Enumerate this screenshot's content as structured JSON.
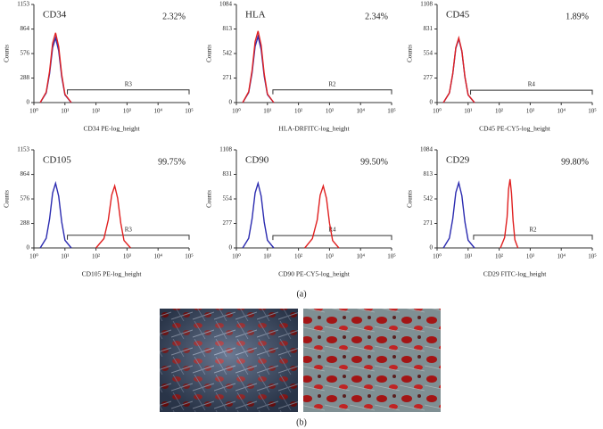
{
  "chart_data": [
    {
      "type": "line",
      "title": "CD34",
      "annotation": "2.32%",
      "xlabel": "CD34 PE-log_height",
      "ylabel": "Counts",
      "xscale": "log",
      "xlim": [
        1,
        100000
      ],
      "xticks": [
        {
          "value": 1,
          "label": "10⁰"
        },
        {
          "value": 10,
          "label": "10¹"
        },
        {
          "value": 100,
          "label": "10²"
        },
        {
          "value": 1000,
          "label": "10³"
        },
        {
          "value": 10000,
          "label": "10⁴"
        },
        {
          "value": 100000,
          "label": "10⁵"
        }
      ],
      "ylim": [
        0,
        1153
      ],
      "yticks": [
        0,
        288,
        576,
        864,
        1153
      ],
      "gate": {
        "label": "R3",
        "x": [
          12,
          100000
        ],
        "y": 150
      },
      "series": [
        {
          "color": "#2b2bb0",
          "x": [
            1.6,
            2.5,
            3.2,
            4,
            5,
            6.3,
            7.9,
            10,
            16
          ],
          "values": [
            0,
            114,
            342,
            646,
            760,
            608,
            304,
            91,
            0
          ]
        },
        {
          "color": "#e02020",
          "x": [
            1.6,
            2.5,
            3.2,
            4,
            5,
            6.3,
            7.9,
            10,
            16
          ],
          "values": [
            0,
            123,
            369,
            697,
            820,
            656,
            328,
            98,
            0
          ]
        }
      ]
    },
    {
      "type": "line",
      "title": "HLA",
      "annotation": "2.34%",
      "xlabel": "HLA-DRFITC-log_height",
      "ylabel": "Counts",
      "xscale": "log",
      "xlim": [
        1,
        100000
      ],
      "xticks": [
        {
          "value": 1,
          "label": "10⁰"
        },
        {
          "value": 10,
          "label": "10¹"
        },
        {
          "value": 100,
          "label": "10²"
        },
        {
          "value": 1000,
          "label": "10³"
        },
        {
          "value": 10000,
          "label": "10⁴"
        },
        {
          "value": 100000,
          "label": "10⁵"
        }
      ],
      "ylim": [
        0,
        1084
      ],
      "yticks": [
        0,
        271,
        542,
        813,
        1084
      ],
      "gate": {
        "label": "R2",
        "x": [
          15,
          100000
        ],
        "y": 140
      },
      "series": [
        {
          "color": "#2b2bb0",
          "x": [
            1.6,
            2.5,
            3.2,
            4,
            5,
            6.3,
            7.9,
            10,
            16
          ],
          "values": [
            0,
            110,
            329,
            621,
            730,
            584,
            292,
            88,
            0
          ]
        },
        {
          "color": "#e02020",
          "x": [
            1.6,
            2.5,
            3.2,
            4,
            5,
            6.3,
            7.9,
            10,
            16
          ],
          "values": [
            0,
            119,
            356,
            672,
            790,
            632,
            316,
            95,
            0
          ]
        }
      ]
    },
    {
      "type": "line",
      "title": "CD45",
      "annotation": "1.89%",
      "xlabel": "CD45 PE-CY5-log_height",
      "ylabel": "Counts",
      "xscale": "log",
      "xlim": [
        1,
        100000
      ],
      "xticks": [
        {
          "value": 1,
          "label": "10⁰"
        },
        {
          "value": 10,
          "label": "10¹"
        },
        {
          "value": 100,
          "label": "10²"
        },
        {
          "value": 1000,
          "label": "10³"
        },
        {
          "value": 10000,
          "label": "10⁴"
        },
        {
          "value": 100000,
          "label": "10⁵"
        }
      ],
      "ylim": [
        0,
        1108
      ],
      "yticks": [
        0,
        277,
        554,
        831,
        1108
      ],
      "gate": {
        "label": "R4",
        "x": [
          12,
          100000
        ],
        "y": 140
      },
      "series": [
        {
          "color": "#2b2bb0",
          "x": [
            1.6,
            2.5,
            3.2,
            4,
            5,
            6.3,
            7.9,
            10,
            16
          ],
          "values": [
            0,
            108,
            324,
            612,
            720,
            576,
            288,
            86,
            0
          ]
        },
        {
          "color": "#e02020",
          "x": [
            1.6,
            2.5,
            3.2,
            4,
            5,
            6.3,
            7.9,
            10,
            16
          ],
          "values": [
            0,
            110,
            329,
            621,
            730,
            584,
            292,
            88,
            0
          ]
        }
      ]
    },
    {
      "type": "line",
      "title": "CD105",
      "annotation": "99.75%",
      "xlabel": "CD105 PE-log_height",
      "ylabel": "Counts",
      "xscale": "log",
      "xlim": [
        1,
        100000
      ],
      "xticks": [
        {
          "value": 1,
          "label": "10⁰"
        },
        {
          "value": 10,
          "label": "10¹"
        },
        {
          "value": 100,
          "label": "10²"
        },
        {
          "value": 1000,
          "label": "10³"
        },
        {
          "value": 10000,
          "label": "10⁴"
        },
        {
          "value": 100000,
          "label": "10⁵"
        }
      ],
      "ylim": [
        0,
        1153
      ],
      "yticks": [
        0,
        288,
        576,
        864,
        1153
      ],
      "gate": {
        "label": "R3",
        "x": [
          12,
          100000
        ],
        "y": 150
      },
      "series": [
        {
          "color": "#2b2bb0",
          "x": [
            1.6,
            2.5,
            3.2,
            4,
            5,
            6.3,
            7.9,
            10,
            16
          ],
          "values": [
            0,
            114,
            342,
            646,
            760,
            608,
            304,
            91,
            0
          ]
        },
        {
          "color": "#e02020",
          "x": [
            100,
            180,
            250,
            320,
            400,
            500,
            630,
            800,
            1300
          ],
          "values": [
            0,
            110,
            329,
            621,
            730,
            584,
            292,
            88,
            0
          ]
        }
      ]
    },
    {
      "type": "line",
      "title": "CD90",
      "annotation": "99.50%",
      "xlabel": "CD90 PE-CY5-log_height",
      "ylabel": "Counts",
      "xscale": "log",
      "xlim": [
        1,
        100000
      ],
      "xticks": [
        {
          "value": 1,
          "label": "10⁰"
        },
        {
          "value": 10,
          "label": "10¹"
        },
        {
          "value": 100,
          "label": "10²"
        },
        {
          "value": 1000,
          "label": "10³"
        },
        {
          "value": 10000,
          "label": "10⁴"
        },
        {
          "value": 100000,
          "label": "10⁵"
        }
      ],
      "ylim": [
        0,
        1108
      ],
      "yticks": [
        0,
        277,
        554,
        831,
        1108
      ],
      "gate": {
        "label": "R4",
        "x": [
          15,
          100000
        ],
        "y": 140
      },
      "series": [
        {
          "color": "#2b2bb0",
          "x": [
            1.6,
            2.5,
            3.2,
            4,
            5,
            6.3,
            7.9,
            10,
            16
          ],
          "values": [
            0,
            110,
            329,
            621,
            730,
            584,
            292,
            88,
            0
          ]
        },
        {
          "color": "#e02020",
          "x": [
            160,
            280,
            400,
            500,
            630,
            800,
            1000,
            1260,
            2000
          ],
          "values": [
            0,
            105,
            315,
            595,
            700,
            560,
            280,
            84,
            0
          ]
        }
      ]
    },
    {
      "type": "line",
      "title": "CD29",
      "annotation": "99.80%",
      "xlabel": "CD29 FITC-log_height",
      "ylabel": "Counts",
      "xscale": "log",
      "xlim": [
        1,
        100000
      ],
      "xticks": [
        {
          "value": 1,
          "label": "10⁰"
        },
        {
          "value": 10,
          "label": "10¹"
        },
        {
          "value": 100,
          "label": "10²"
        },
        {
          "value": 1000,
          "label": "10³"
        },
        {
          "value": 10000,
          "label": "10⁴"
        },
        {
          "value": 100000,
          "label": "10⁵"
        }
      ],
      "ylim": [
        0,
        1084
      ],
      "yticks": [
        0,
        271,
        542,
        813,
        1084
      ],
      "gate": {
        "label": "R2",
        "x": [
          15,
          100000
        ],
        "y": 140
      },
      "series": [
        {
          "color": "#2b2bb0",
          "x": [
            1.6,
            2.5,
            3.2,
            4,
            5,
            6.3,
            7.9,
            10,
            16
          ],
          "values": [
            0,
            108,
            324,
            612,
            720,
            576,
            288,
            86,
            0
          ]
        },
        {
          "color": "#e02020",
          "x": [
            110,
            150,
            180,
            200,
            224,
            250,
            280,
            320,
            400
          ],
          "values": [
            0,
            114,
            342,
            646,
            760,
            608,
            304,
            91,
            0
          ]
        }
      ]
    }
  ],
  "panel_labels": [
    "(a)",
    "(b)"
  ]
}
